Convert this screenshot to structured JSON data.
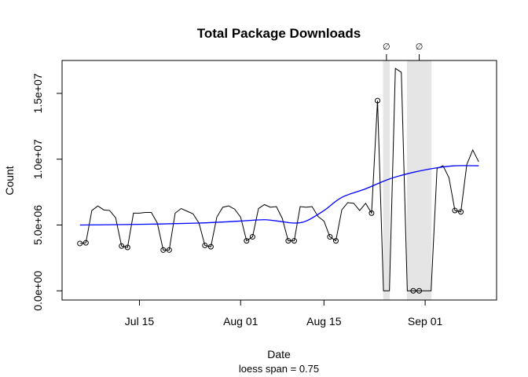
{
  "chart_data": {
    "type": "line",
    "title": "Total Package Downloads",
    "xlabel": "Date",
    "ylabel": "Count",
    "subtitle": "loess span = 0.75",
    "x_ticks": [
      {
        "date": "2014-07-15",
        "label": "Jul 15"
      },
      {
        "date": "2014-08-01",
        "label": "Aug 01"
      },
      {
        "date": "2014-08-15",
        "label": "Aug 15"
      },
      {
        "date": "2014-09-01",
        "label": "Sep 01"
      }
    ],
    "y_ticks": [
      {
        "value": 0,
        "label": "0.0e+00"
      },
      {
        "value": 5000000,
        "label": "5.0e+06"
      },
      {
        "value": 10000000,
        "label": "1.0e+07"
      },
      {
        "value": 15000000,
        "label": "1.5e+07"
      }
    ],
    "xlim": [
      "2014-07-02",
      "2014-09-13"
    ],
    "ylim": [
      -700000,
      17500000
    ],
    "grid": false,
    "missing_marker": "∅",
    "missing_ranges": [
      {
        "start": "2014-08-25",
        "end": "2014-08-26",
        "marker_date": "2014-08-25"
      },
      {
        "start": "2014-08-29",
        "end": "2014-09-02",
        "marker_date": "2014-08-31"
      }
    ],
    "colors": {
      "series": "#000000",
      "loess": "#0000ff",
      "missing_band": "#e5e5e5"
    },
    "series": [
      {
        "start_date": "2014-07-05",
        "weekend_markers": "open circles",
        "values": [
          3600000,
          3650000,
          6100000,
          6450000,
          6150000,
          6100000,
          5550000,
          3400000,
          3300000,
          5900000,
          5900000,
          5950000,
          5950000,
          5150000,
          3100000,
          3100000,
          5900000,
          6250000,
          6050000,
          5850000,
          5150000,
          3450000,
          3350000,
          5600000,
          6350000,
          6450000,
          6200000,
          5600000,
          3800000,
          4100000,
          6250000,
          6550000,
          6350000,
          6400000,
          5500000,
          3800000,
          3800000,
          6400000,
          6350000,
          6400000,
          5650000,
          5300000,
          4100000,
          3800000,
          6150000,
          6700000,
          6650000,
          6100000,
          6650000,
          5900000,
          14450000,
          0,
          0,
          16900000,
          16600000,
          0,
          0,
          0,
          0,
          0,
          9300000,
          9500000,
          8600000,
          6100000,
          6000000,
          9600000,
          10700000,
          9800000
        ]
      },
      {
        "smoother": "loess",
        "points": [
          {
            "date": "2014-07-05",
            "value": 5000000
          },
          {
            "date": "2014-07-15",
            "value": 5050000
          },
          {
            "date": "2014-07-25",
            "value": 5150000
          },
          {
            "date": "2014-08-01",
            "value": 5300000
          },
          {
            "date": "2014-08-05",
            "value": 5400000
          },
          {
            "date": "2014-08-08",
            "value": 5250000
          },
          {
            "date": "2014-08-10",
            "value": 5150000
          },
          {
            "date": "2014-08-12",
            "value": 5300000
          },
          {
            "date": "2014-08-15",
            "value": 6100000
          },
          {
            "date": "2014-08-18",
            "value": 7100000
          },
          {
            "date": "2014-08-22",
            "value": 7750000
          },
          {
            "date": "2014-08-26",
            "value": 8500000
          },
          {
            "date": "2014-08-30",
            "value": 9000000
          },
          {
            "date": "2014-09-03",
            "value": 9350000
          },
          {
            "date": "2014-09-06",
            "value": 9500000
          },
          {
            "date": "2014-09-10",
            "value": 9500000
          }
        ]
      }
    ]
  }
}
